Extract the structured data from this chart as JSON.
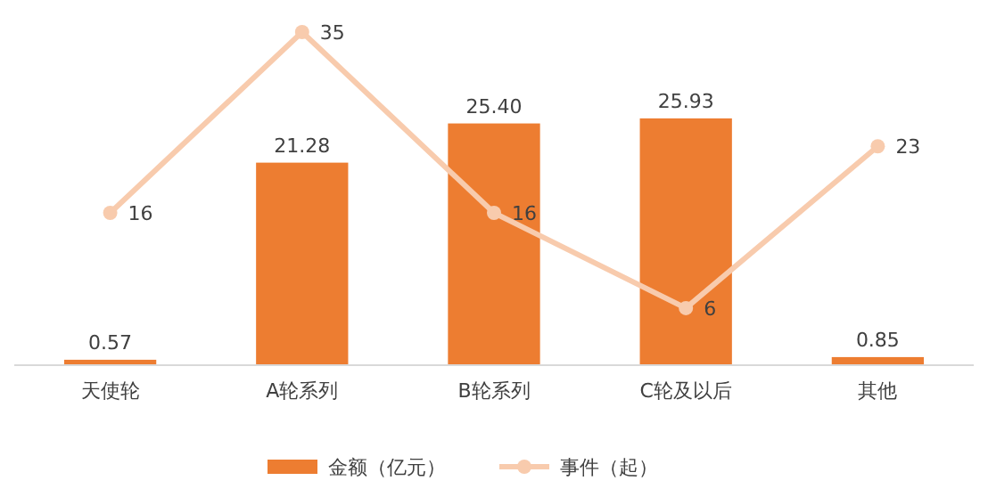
{
  "chart_data": {
    "type": "bar",
    "categories": [
      "天使轮",
      "A轮系列",
      "B轮系列",
      "C轮及以后",
      "其他"
    ],
    "series": [
      {
        "name": "金额（亿元）",
        "color": "#ed7d31",
        "values": [
          0.57,
          21.28,
          25.4,
          25.93,
          0.85
        ],
        "value_labels": [
          "0.57",
          "21.28",
          "25.40",
          "25.93",
          "0.85"
        ]
      },
      {
        "name": "事件（起）",
        "type": "line",
        "color": "#f8cbad",
        "values": [
          16,
          35,
          16,
          6,
          23
        ]
      }
    ],
    "tick_labels": "x",
    "data_labels": true,
    "legend": "bottom",
    "marker": "circle",
    "line_style": "solid"
  }
}
